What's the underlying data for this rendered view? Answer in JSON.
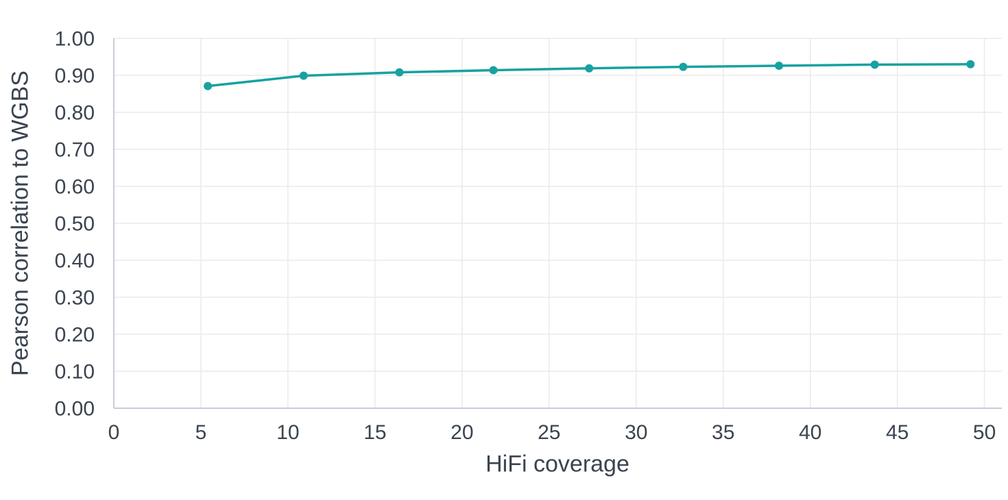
{
  "figure": {
    "background": "#ffffff"
  },
  "chart_data": {
    "type": "line",
    "title": "",
    "xlabel": "HiFi coverage",
    "ylabel": "Pearson correlation to WGBS",
    "xlim": [
      0,
      51
    ],
    "ylim": [
      0,
      1
    ],
    "x_ticks": [
      0,
      5,
      10,
      15,
      20,
      25,
      30,
      35,
      40,
      45,
      50
    ],
    "y_ticks": [
      0.0,
      0.1,
      0.2,
      0.3,
      0.4,
      0.5,
      0.6,
      0.7,
      0.8,
      0.9,
      1.0
    ],
    "y_tick_decimals": 2,
    "grid": true,
    "legend_position": "none",
    "series": [
      {
        "marker": "circle",
        "color": "#18a1a1",
        "x": [
          5.4,
          10.9,
          16.4,
          21.8,
          27.3,
          32.7,
          38.2,
          43.7,
          49.2
        ],
        "y": [
          0.871,
          0.899,
          0.908,
          0.914,
          0.919,
          0.923,
          0.926,
          0.929,
          0.93
        ]
      }
    ],
    "style": {
      "line_color": "#18a1a1",
      "marker_color": "#18a1a1",
      "text_color": "#3a4450",
      "grid_color": "#eaeaec",
      "axis_line_color": "#c8ccd8",
      "tick_font_size": 30,
      "line_width": 3.5,
      "marker_radius": 6
    }
  }
}
